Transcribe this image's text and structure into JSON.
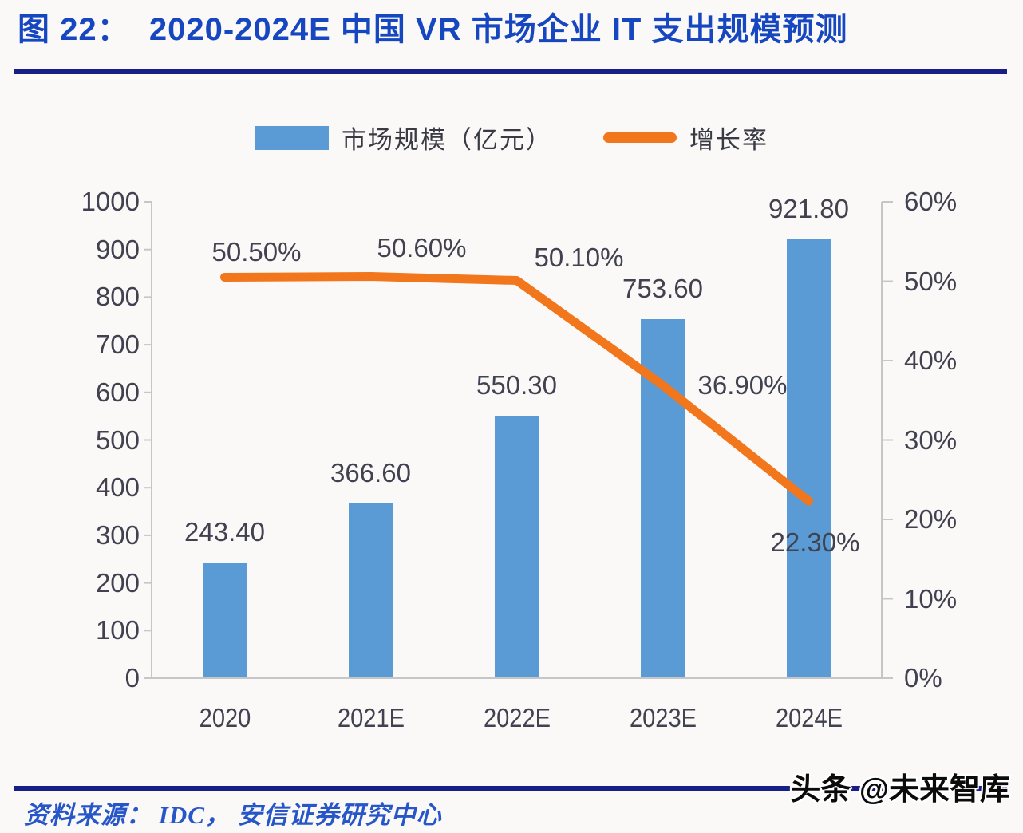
{
  "page": {
    "title": "图 22：  2020-2024E 中国 VR 市场企业 IT 支出规模预测",
    "source": "资料来源： IDC， 安信证券研究中心",
    "watermark": "头条 @未来智库",
    "colors": {
      "title_blue": "#1747C0",
      "rule_navy": "#171E85",
      "bar_blue": "#5B9BD5",
      "line_orange": "#F2761B",
      "source_blue": "#2756C8",
      "label_dark": "#41414F",
      "axis_gray": "#C6C6C6",
      "background": "#FAF9F8"
    }
  },
  "chart_data": {
    "type": "bar",
    "subtype": "bar+line combo, dual axis",
    "categories": [
      "2020",
      "2021E",
      "2022E",
      "2023E",
      "2024E"
    ],
    "series": [
      {
        "name": "市场规模（亿元）",
        "type": "bar",
        "axis": "left",
        "values": [
          243.4,
          366.6,
          550.3,
          753.6,
          921.8
        ],
        "labels": [
          "243.40",
          "366.60",
          "550.30",
          "753.60",
          "921.80"
        ],
        "color": "#5B9BD5"
      },
      {
        "name": "增长率",
        "type": "line",
        "axis": "right",
        "values": [
          50.5,
          50.6,
          50.1,
          36.9,
          22.3
        ],
        "labels": [
          "50.50%",
          "50.60%",
          "50.10%",
          "36.90%",
          "22.30%"
        ],
        "color": "#F2761B"
      }
    ],
    "left_axis": {
      "min": 0,
      "max": 1000,
      "step": 100,
      "ticks": [
        "0",
        "100",
        "200",
        "300",
        "400",
        "500",
        "600",
        "700",
        "800",
        "900",
        "1000"
      ]
    },
    "right_axis": {
      "min": 0,
      "max": 60,
      "step": 10,
      "ticks": [
        "0%",
        "10%",
        "20%",
        "30%",
        "40%",
        "50%",
        "60%"
      ]
    },
    "legend_position": "top",
    "grid": false
  }
}
